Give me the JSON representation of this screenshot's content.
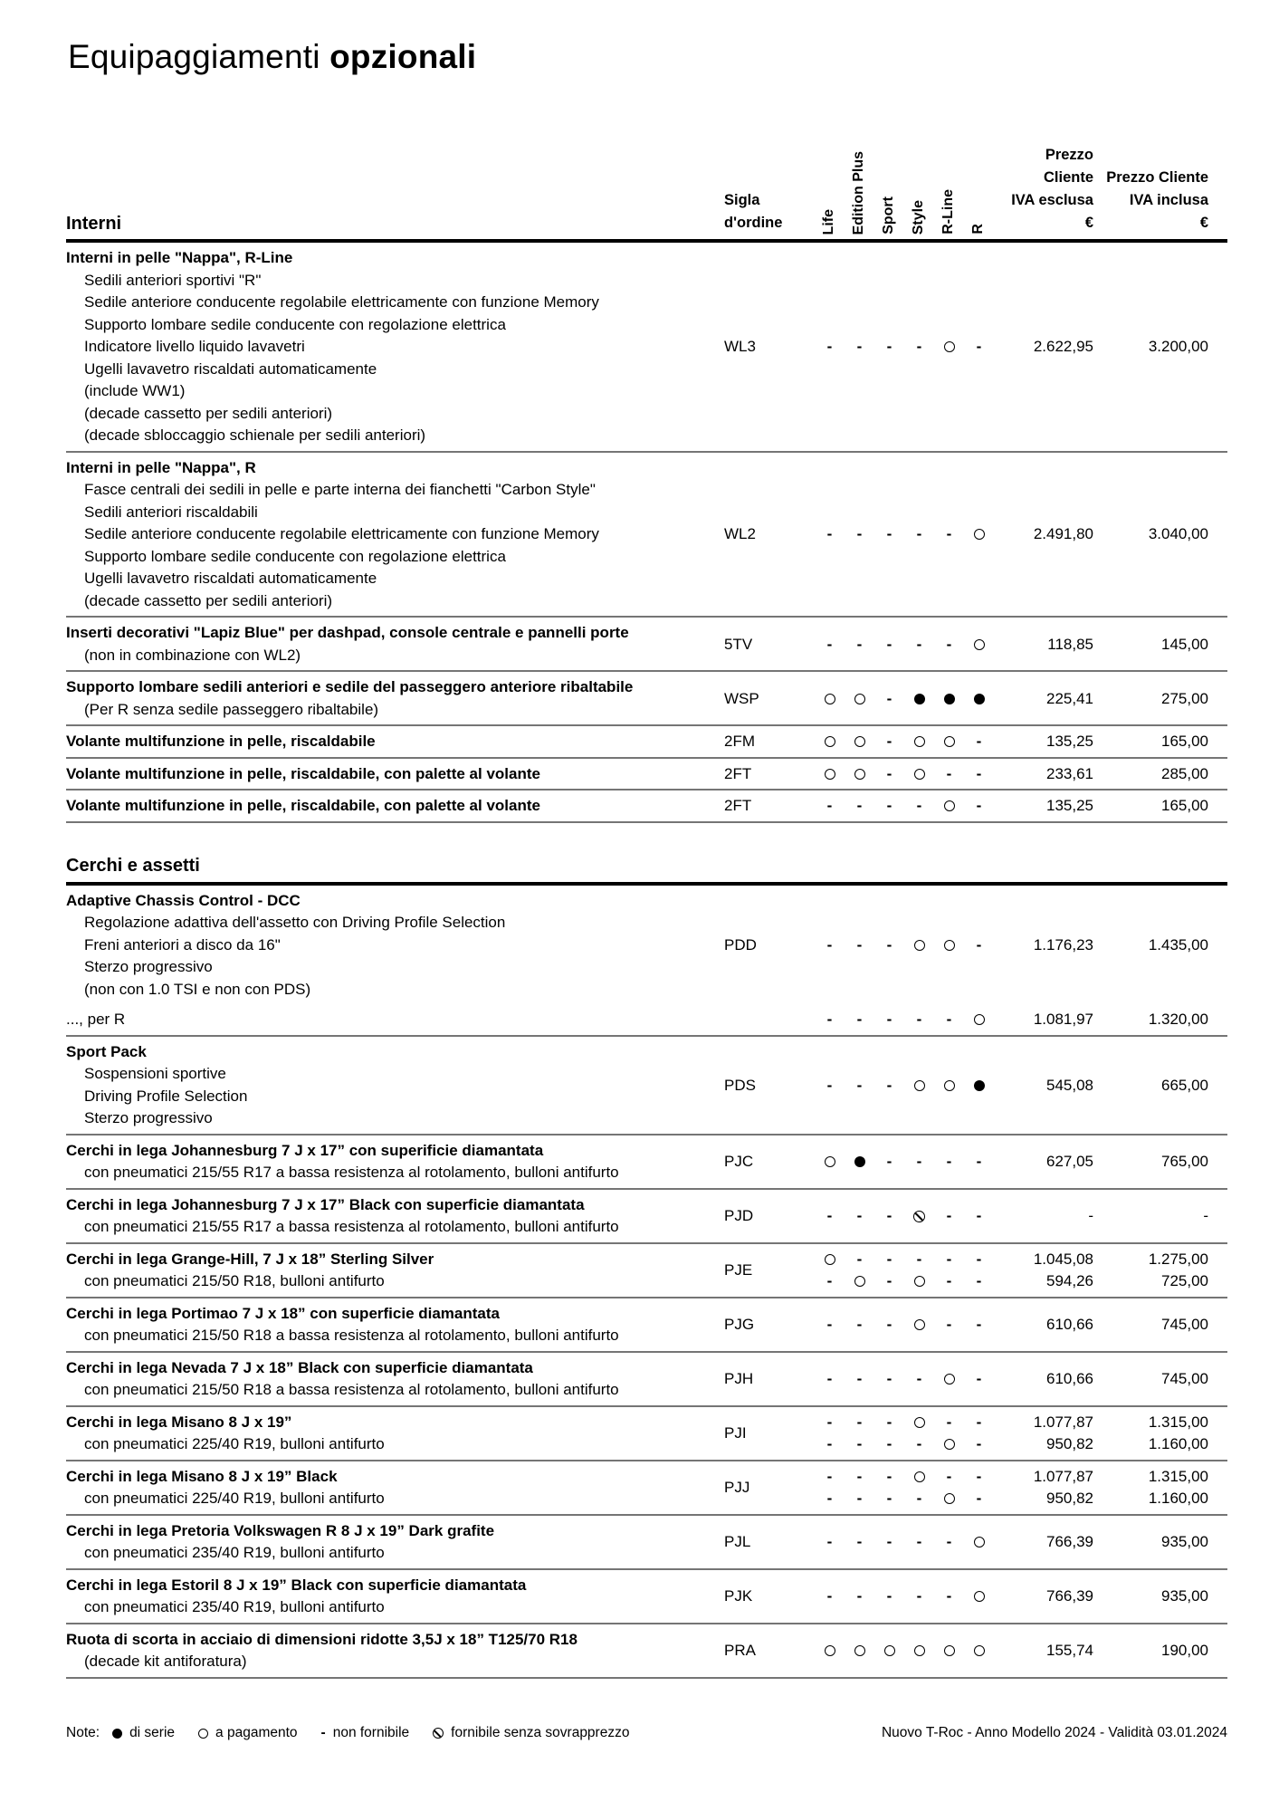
{
  "page": {
    "title_light": "Equipaggiamenti",
    "title_bold": "opzionali"
  },
  "header": {
    "sigla_line1": "Sigla",
    "sigla_line2": "d'ordine",
    "trims": [
      "Life",
      "Edition Plus",
      "Sport",
      "Style",
      "R-Line",
      "R"
    ],
    "price_ex_lines": [
      "Prezzo Cliente",
      "IVA esclusa",
      "€"
    ],
    "price_inc_lines": [
      "Prezzo Cliente",
      "IVA inclusa",
      "€"
    ]
  },
  "marks_legend_semantics": {
    "std": "di serie (filled circle)",
    "pay": "a pagamento (open circle)",
    "no": "non fornibile (dash)",
    "free": "fornibile senza sovrapprezzo (circle with slash)"
  },
  "sections": [
    {
      "heading": "Interni",
      "rows": [
        {
          "code": "WL3",
          "title": "Interni in pelle \"Nappa\", R-Line",
          "details": [
            "Sedili anteriori sportivi \"R\"",
            "Sedile anteriore conducente regolabile elettricamente con funzione Memory",
            "Supporto lombare sedile conducente con regolazione elettrica",
            "Indicatore livello liquido lavavetri",
            "Ugelli lavavetro riscaldati automaticamente",
            "(include WW1)",
            "(decade cassetto per sedili anteriori)",
            "(decade sbloccaggio schienale per sedili anteriori)"
          ],
          "values": [
            {
              "marks": [
                "no",
                "no",
                "no",
                "no",
                "pay",
                "no"
              ],
              "ex": "2.622,95",
              "inc": "3.200,00"
            }
          ]
        },
        {
          "code": "WL2",
          "title": "Interni in pelle \"Nappa\", R",
          "details": [
            "Fasce centrali dei sedili in pelle e parte interna dei fianchetti \"Carbon Style\"",
            "Sedili anteriori riscaldabili",
            "Sedile anteriore conducente regolabile elettricamente con funzione Memory",
            "Supporto lombare sedile conducente con regolazione elettrica",
            "Ugelli lavavetro riscaldati automaticamente",
            "(decade cassetto per sedili anteriori)"
          ],
          "values": [
            {
              "marks": [
                "no",
                "no",
                "no",
                "no",
                "no",
                "pay"
              ],
              "ex": "2.491,80",
              "inc": "3.040,00"
            }
          ]
        },
        {
          "code": "5TV",
          "title": "Inserti decorativi \"Lapiz Blue\" per dashpad, console centrale e pannelli porte",
          "details": [
            "(non in combinazione con WL2)"
          ],
          "values": [
            {
              "marks": [
                "no",
                "no",
                "no",
                "no",
                "no",
                "pay"
              ],
              "ex": "118,85",
              "inc": "145,00"
            }
          ]
        },
        {
          "code": "WSP",
          "title": "Supporto lombare sedili anteriori e sedile del passeggero anteriore ribaltabile",
          "details": [
            "(Per R senza sedile passeggero ribaltabile)"
          ],
          "values": [
            {
              "marks": [
                "pay",
                "pay",
                "no",
                "std",
                "std",
                "std"
              ],
              "ex": "225,41",
              "inc": "275,00"
            }
          ]
        },
        {
          "code": "2FM",
          "title": "Volante multifunzione in pelle, riscaldabile",
          "details": [],
          "values": [
            {
              "marks": [
                "pay",
                "pay",
                "no",
                "pay",
                "pay",
                "no"
              ],
              "ex": "135,25",
              "inc": "165,00"
            }
          ]
        },
        {
          "code": "2FT",
          "title": "Volante multifunzione in pelle, riscaldabile, con palette al volante",
          "details": [],
          "values": [
            {
              "marks": [
                "pay",
                "pay",
                "no",
                "pay",
                "no",
                "no"
              ],
              "ex": "233,61",
              "inc": "285,00"
            }
          ]
        },
        {
          "code": "2FT",
          "title": "Volante multifunzione in pelle, riscaldabile, con palette al volante",
          "details": [],
          "values": [
            {
              "marks": [
                "no",
                "no",
                "no",
                "no",
                "pay",
                "no"
              ],
              "ex": "135,25",
              "inc": "165,00"
            }
          ]
        }
      ]
    },
    {
      "heading": "Cerchi e assetti",
      "rows": [
        {
          "code": "PDD",
          "title": "Adaptive Chassis Control - DCC",
          "details": [
            "Regolazione adattiva dell'assetto con Driving Profile Selection",
            "Freni anteriori a disco da 16\"",
            "Sterzo progressivo",
            "(non con 1.0 TSI e non con PDS)"
          ],
          "no_border": true,
          "values": [
            {
              "marks": [
                "no",
                "no",
                "no",
                "pay",
                "pay",
                "no"
              ],
              "ex": "1.176,23",
              "inc": "1.435,00"
            }
          ]
        },
        {
          "code": "",
          "title": "..., per R",
          "plain": true,
          "details": [],
          "values": [
            {
              "marks": [
                "no",
                "no",
                "no",
                "no",
                "no",
                "pay"
              ],
              "ex": "1.081,97",
              "inc": "1.320,00"
            }
          ]
        },
        {
          "code": "PDS",
          "title": "Sport Pack",
          "details": [
            "Sospensioni sportive",
            "Driving Profile Selection",
            "Sterzo progressivo"
          ],
          "values": [
            {
              "marks": [
                "no",
                "no",
                "no",
                "pay",
                "pay",
                "std"
              ],
              "ex": "545,08",
              "inc": "665,00"
            }
          ]
        },
        {
          "code": "PJC",
          "title": "Cerchi in lega Johannesburg 7 J x 17” con superificie diamantata",
          "details": [
            "con pneumatici 215/55 R17 a bassa resistenza al rotolamento, bulloni antifurto"
          ],
          "values": [
            {
              "marks": [
                "pay",
                "std",
                "no",
                "no",
                "no",
                "no"
              ],
              "ex": "627,05",
              "inc": "765,00"
            }
          ]
        },
        {
          "code": "PJD",
          "title": "Cerchi in lega Johannesburg 7 J x 17” Black con superficie diamantata",
          "details": [
            "con pneumatici 215/55 R17 a bassa resistenza al rotolamento, bulloni antifurto"
          ],
          "values": [
            {
              "marks": [
                "no",
                "no",
                "no",
                "free",
                "no",
                "no"
              ],
              "ex": "-",
              "inc": "-"
            }
          ]
        },
        {
          "code": "PJE",
          "title": "Cerchi in lega Grange-Hill,  7 J x 18” Sterling Silver",
          "details": [
            "con pneumatici 215/50 R18, bulloni antifurto"
          ],
          "values": [
            {
              "marks": [
                "pay",
                "no",
                "no",
                "no",
                "no",
                "no"
              ],
              "ex": "1.045,08",
              "inc": "1.275,00"
            },
            {
              "marks": [
                "no",
                "pay",
                "no",
                "pay",
                "no",
                "no"
              ],
              "ex": "594,26",
              "inc": "725,00"
            }
          ]
        },
        {
          "code": "PJG",
          "title": "Cerchi in lega Portimao 7 J x 18” con superficie diamantata",
          "details": [
            "con pneumatici 215/50 R18 a bassa resistenza al rotolamento, bulloni antifurto"
          ],
          "values": [
            {
              "marks": [
                "no",
                "no",
                "no",
                "pay",
                "no",
                "no"
              ],
              "ex": "610,66",
              "inc": "745,00"
            }
          ]
        },
        {
          "code": "PJH",
          "title": "Cerchi in lega Nevada 7 J x 18” Black con superficie diamantata",
          "details": [
            "con pneumatici 215/50 R18 a bassa resistenza al rotolamento, bulloni antifurto"
          ],
          "values": [
            {
              "marks": [
                "no",
                "no",
                "no",
                "no",
                "pay",
                "no"
              ],
              "ex": "610,66",
              "inc": "745,00"
            }
          ]
        },
        {
          "code": "PJI",
          "title": "Cerchi in lega Misano 8 J x 19”",
          "details": [
            "con pneumatici 225/40 R19, bulloni antifurto"
          ],
          "values": [
            {
              "marks": [
                "no",
                "no",
                "no",
                "pay",
                "no",
                "no"
              ],
              "ex": "1.077,87",
              "inc": "1.315,00"
            },
            {
              "marks": [
                "no",
                "no",
                "no",
                "no",
                "pay",
                "no"
              ],
              "ex": "950,82",
              "inc": "1.160,00"
            }
          ]
        },
        {
          "code": "PJJ",
          "title": "Cerchi in lega Misano 8 J x 19” Black",
          "details": [
            "con pneumatici 225/40 R19, bulloni antifurto"
          ],
          "values": [
            {
              "marks": [
                "no",
                "no",
                "no",
                "pay",
                "no",
                "no"
              ],
              "ex": "1.077,87",
              "inc": "1.315,00"
            },
            {
              "marks": [
                "no",
                "no",
                "no",
                "no",
                "pay",
                "no"
              ],
              "ex": "950,82",
              "inc": "1.160,00"
            }
          ]
        },
        {
          "code": "PJL",
          "title": "Cerchi in lega Pretoria Volkswagen R 8 J x 19” Dark grafite",
          "details": [
            "con pneumatici 235/40 R19, bulloni antifurto"
          ],
          "values": [
            {
              "marks": [
                "no",
                "no",
                "no",
                "no",
                "no",
                "pay"
              ],
              "ex": "766,39",
              "inc": "935,00"
            }
          ]
        },
        {
          "code": "PJK",
          "title": "Cerchi in lega Estoril 8 J x 19” Black con superficie diamantata",
          "details": [
            "con pneumatici 235/40 R19, bulloni antifurto"
          ],
          "values": [
            {
              "marks": [
                "no",
                "no",
                "no",
                "no",
                "no",
                "pay"
              ],
              "ex": "766,39",
              "inc": "935,00"
            }
          ]
        },
        {
          "code": "PRA",
          "title": "Ruota di scorta in acciaio di dimensioni ridotte 3,5J x 18” T125/70 R18",
          "details": [
            "(decade kit antiforatura)"
          ],
          "values": [
            {
              "marks": [
                "pay",
                "pay",
                "pay",
                "pay",
                "pay",
                "pay"
              ],
              "ex": "155,74",
              "inc": "190,00"
            }
          ]
        }
      ]
    }
  ],
  "legend": {
    "label": "Note:",
    "items": [
      {
        "mark": "std",
        "text": "di serie"
      },
      {
        "mark": "pay",
        "text": "a pagamento"
      },
      {
        "mark": "no",
        "text": "non fornibile"
      },
      {
        "mark": "free",
        "text": "fornibile senza sovrapprezzo"
      }
    ]
  },
  "footer": {
    "right": "Nuovo T-Roc - Anno Modello 2024 - Validità 03.01.2024"
  }
}
